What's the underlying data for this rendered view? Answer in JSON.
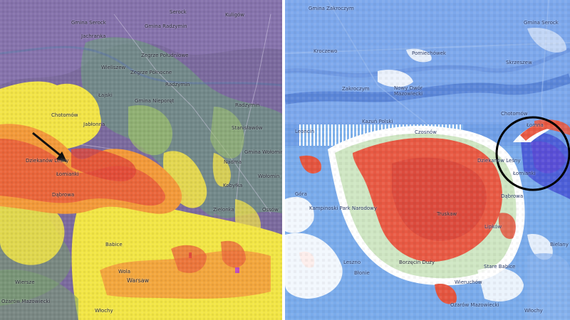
{
  "left_map": {
    "labels": [
      {
        "id": "serock",
        "text": "Serock"
      },
      {
        "id": "kuligow",
        "text": "Kuligów"
      },
      {
        "id": "gmina-serock",
        "text": "Gmina Serock"
      },
      {
        "id": "jachranka",
        "text": "Jachranka"
      },
      {
        "id": "gmina-radzymin",
        "text": "Gmina Radzymin"
      },
      {
        "id": "wieliszew",
        "text": "Wieliszew"
      },
      {
        "id": "zegrze-pd",
        "text": "Zegrze Południowe"
      },
      {
        "id": "zegrze-pn",
        "text": "Zegrze Północne"
      },
      {
        "id": "radzymin",
        "text": "Radzymin"
      },
      {
        "id": "lajski",
        "text": "Łajski"
      },
      {
        "id": "gmina-nieporet",
        "text": "Gmina Nieporęt"
      },
      {
        "id": "radzymin-2",
        "text": "Radzymin"
      },
      {
        "id": "chotomow",
        "text": "Chotomów"
      },
      {
        "id": "jablonna",
        "text": "Jabłonna"
      },
      {
        "id": "stanislawow",
        "text": "Stanisławów"
      },
      {
        "id": "dziekanow",
        "text": "Dziekanów Leśny"
      },
      {
        "id": "lomianki",
        "text": "Łomianki"
      },
      {
        "id": "dabrowa",
        "text": "Dąbrowa"
      },
      {
        "id": "gmina-wolomin",
        "text": "Gmina Wołomin"
      },
      {
        "id": "nadma",
        "text": "Nadma"
      },
      {
        "id": "wolomin",
        "text": "Wołomin"
      },
      {
        "id": "kobylka",
        "text": "Kobyłka"
      },
      {
        "id": "zielonka",
        "text": "Zielonka"
      },
      {
        "id": "ossow",
        "text": "Ossów"
      },
      {
        "id": "babice",
        "text": "Babice"
      },
      {
        "id": "wola",
        "text": "Wola"
      },
      {
        "id": "warsaw",
        "text": "Warsaw"
      },
      {
        "id": "wiersze",
        "text": "Wiersze"
      },
      {
        "id": "ozarow",
        "text": "Ożarów Mazowiecki"
      },
      {
        "id": "wlochy",
        "text": "Włochy"
      }
    ]
  },
  "right_map": {
    "labels": [
      {
        "id": "gmina-zakroczym",
        "text": "Gmina Zakroczym"
      },
      {
        "id": "gmina-serock",
        "text": "Gmina Serock"
      },
      {
        "id": "kroczewo",
        "text": "Kroczewo"
      },
      {
        "id": "pomiechowek",
        "text": "Pomiechówek"
      },
      {
        "id": "nowy-dwor",
        "text": "Nowy Dwór Mazowiecki"
      },
      {
        "id": "zakroczym",
        "text": "Zakroczym"
      },
      {
        "id": "skrzeszew",
        "text": "Skrzeszew"
      },
      {
        "id": "leoncin",
        "text": "Leoncin"
      },
      {
        "id": "kazun",
        "text": "Kazuń Polski"
      },
      {
        "id": "czosnow",
        "text": "Czosnów"
      },
      {
        "id": "chotomow",
        "text": "Chotomów"
      },
      {
        "id": "lomna",
        "text": "Łomna"
      },
      {
        "id": "dziekanow",
        "text": "Dziekanów Leśny"
      },
      {
        "id": "lomianki",
        "text": "Łomianki"
      },
      {
        "id": "gora",
        "text": "Góra"
      },
      {
        "id": "kampinoski",
        "text": "Kampinoski Park Narodowy"
      },
      {
        "id": "truskaw",
        "text": "Truskaw"
      },
      {
        "id": "dabrowa",
        "text": "Dąbrowa"
      },
      {
        "id": "lesno",
        "text": "Leszno"
      },
      {
        "id": "borzecin",
        "text": "Borzęcin Duży"
      },
      {
        "id": "lipkow",
        "text": "Lipków"
      },
      {
        "id": "stare-babice",
        "text": "Stare Babice"
      },
      {
        "id": "wierzchow",
        "text": "Wieruchów"
      },
      {
        "id": "ozarow",
        "text": "Ożarów Mazowiecki"
      },
      {
        "id": "wlochy",
        "text": "Włochy"
      },
      {
        "id": "bielany",
        "text": "Bielany"
      },
      {
        "id": "blonie",
        "text": "Błonie"
      }
    ]
  },
  "colors": {
    "arrow": "#111111",
    "circle": "#000000",
    "radar_red": "#e64a3c",
    "radar_orange": "#f39c3a",
    "radar_yellow": "#f4e946",
    "radar_green": "#8fbf6f",
    "radar_purple": "#8a6aa8",
    "map_blue": "#6fa1e6"
  }
}
